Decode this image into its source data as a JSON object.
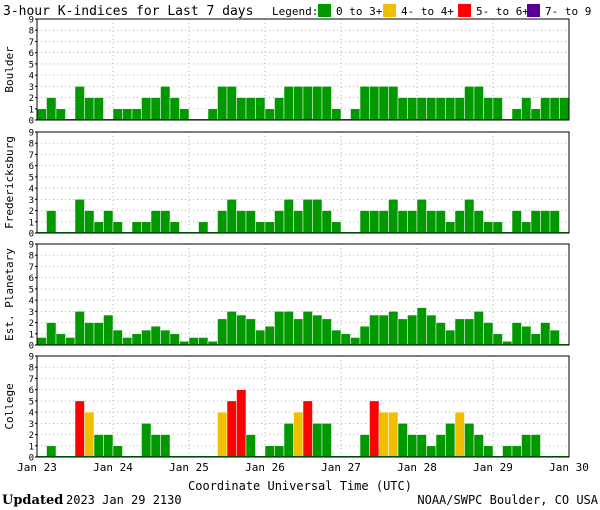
{
  "title": "3-hour K-indices for Last 7 days",
  "legend": {
    "label": "Legend:",
    "items": [
      {
        "text": "0 to 3+",
        "color": "#009900"
      },
      {
        "text": "4- to 4+",
        "color": "#f0c000"
      },
      {
        "text": "5- to 6+",
        "color": "#ff0000"
      },
      {
        "text": "7- to 9",
        "color": "#550099"
      }
    ]
  },
  "xlabel": "Coordinate Universal Time (UTC)",
  "footer": {
    "updated_label": "Updated",
    "updated_value": "2023 Jan 29 2130",
    "source": "NOAA/SWPC Boulder, CO USA"
  },
  "chart_data": {
    "type": "bar",
    "x_tick_labels": [
      "Jan 23",
      "Jan 24",
      "Jan 25",
      "Jan 26",
      "Jan 27",
      "Jan 28",
      "Jan 29",
      "Jan 30"
    ],
    "y_ticks": [
      0,
      1,
      2,
      3,
      4,
      5,
      6,
      7,
      8,
      9
    ],
    "ylim": [
      0,
      9
    ],
    "grid": true,
    "bins_per_day": 8,
    "days": 7,
    "panels": [
      {
        "label": "Boulder",
        "values": [
          1,
          2,
          1,
          0,
          3,
          2,
          2,
          0,
          1,
          1,
          1,
          2,
          2,
          3,
          2,
          1,
          0,
          0,
          1,
          3,
          3,
          2,
          2,
          2,
          1,
          2,
          3,
          3,
          3,
          3,
          3,
          1,
          0,
          1,
          3,
          3,
          3,
          3,
          2,
          2,
          2,
          2,
          2,
          2,
          2,
          3,
          3,
          2,
          2,
          0,
          1,
          2,
          1,
          2,
          2,
          2,
          0
        ]
      },
      {
        "label": "Fredericksburg",
        "values": [
          0,
          2,
          0,
          0,
          3,
          2,
          1,
          2,
          1,
          0,
          1,
          1,
          2,
          2,
          1,
          0,
          0,
          1,
          0,
          2,
          3,
          2,
          2,
          1,
          1,
          2,
          3,
          2,
          3,
          3,
          2,
          1,
          0,
          0,
          2,
          2,
          2,
          3,
          2,
          2,
          3,
          2,
          2,
          1,
          2,
          3,
          2,
          1,
          1,
          0,
          2,
          1,
          2,
          2,
          2,
          0
        ]
      },
      {
        "label": "Est. Planetary",
        "values": [
          0.67,
          2,
          1,
          0.67,
          3,
          2,
          2,
          2.67,
          1.33,
          0.67,
          1,
          1.33,
          1.67,
          1.33,
          1,
          0.33,
          0.67,
          0.67,
          0.33,
          2.33,
          3,
          2.67,
          2.33,
          1.33,
          1.67,
          3,
          3,
          2.33,
          3,
          2.67,
          2.33,
          1.33,
          1,
          0.67,
          1.67,
          2.67,
          2.67,
          3,
          2.33,
          2.67,
          3.33,
          2.67,
          2,
          1.33,
          2.33,
          2.33,
          3,
          2,
          1,
          0.33,
          2,
          1.67,
          1,
          2,
          1.33
        ]
      },
      {
        "label": "College",
        "values": [
          0,
          1,
          0,
          0,
          5,
          4,
          2,
          2,
          1,
          0,
          0,
          3,
          2,
          2,
          0,
          0,
          0,
          0,
          0,
          4,
          5,
          6,
          2,
          0,
          1,
          1,
          3,
          4,
          5,
          3,
          3,
          0,
          0,
          0,
          2,
          5,
          4,
          4,
          3,
          2,
          2,
          1,
          2,
          3,
          4,
          3,
          2,
          1,
          0,
          1,
          1,
          2,
          2,
          0,
          0
        ]
      }
    ],
    "color_scale": [
      {
        "range": "0 to 3+",
        "color": "#009900"
      },
      {
        "range": "4- to 4+",
        "color": "#f0c000"
      },
      {
        "range": "5- to 6+",
        "color": "#ff0000"
      },
      {
        "range": "7- to 9",
        "color": "#550099"
      }
    ]
  }
}
